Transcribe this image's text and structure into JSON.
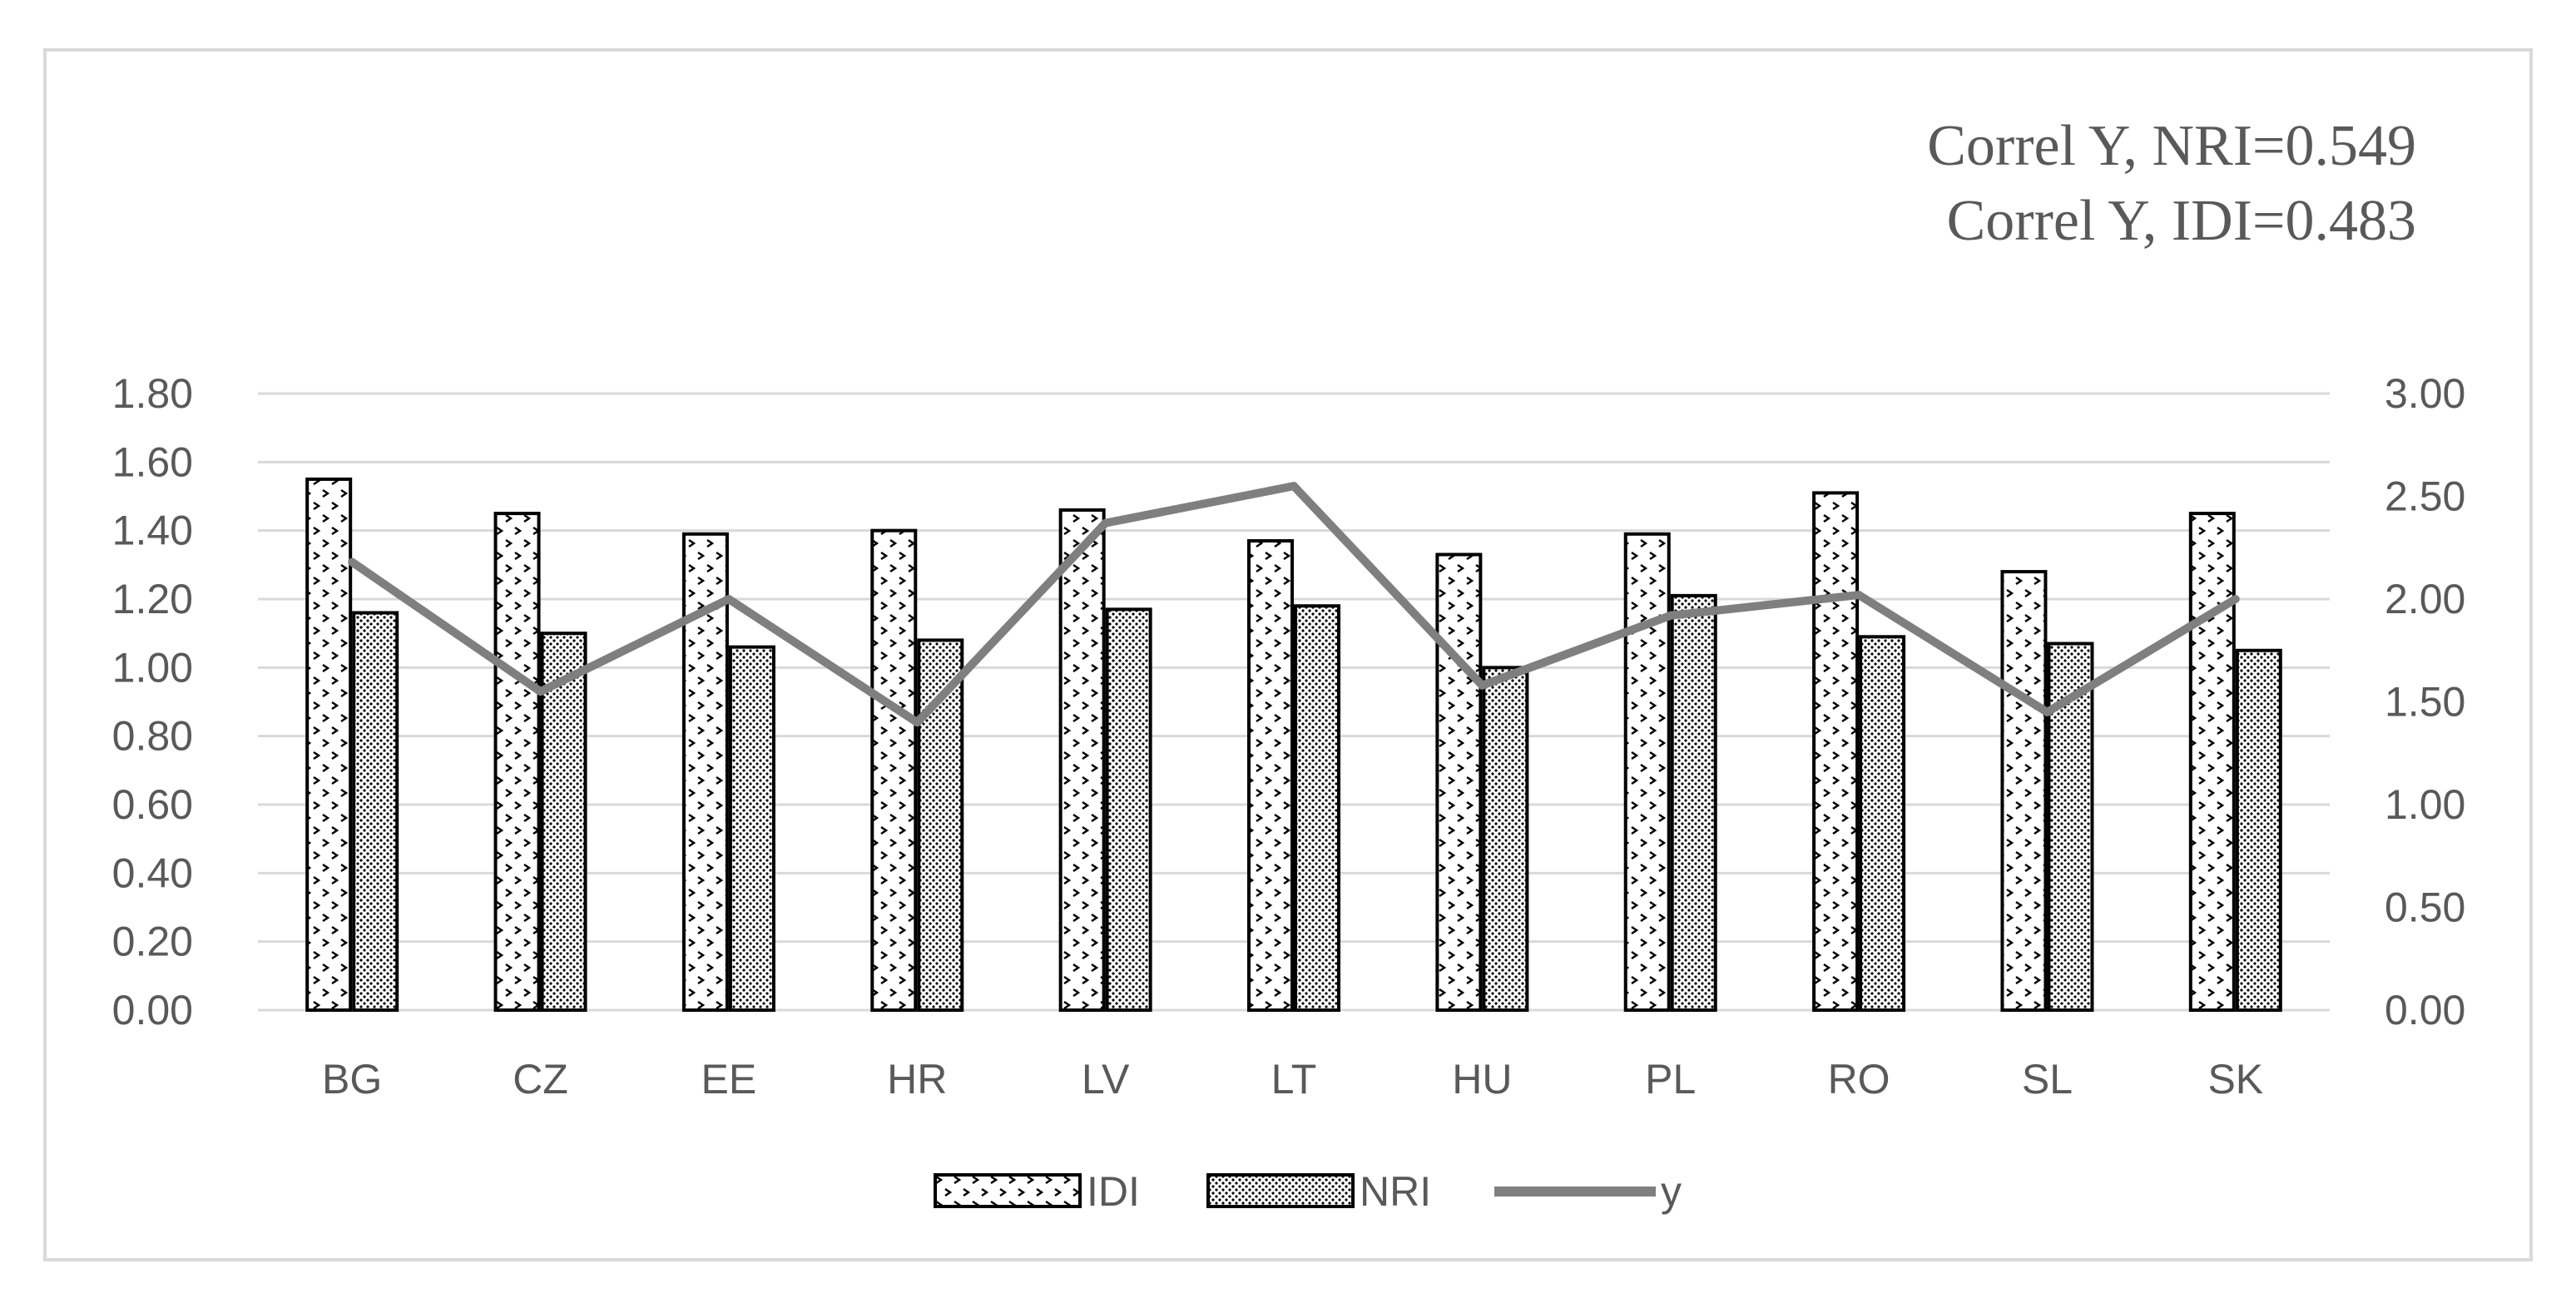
{
  "chart_data": {
    "type": "bar",
    "categories": [
      "BG",
      "CZ",
      "EE",
      "HR",
      "LV",
      "LT",
      "HU",
      "PL",
      "RO",
      "SL",
      "SK"
    ],
    "series": [
      {
        "name": "IDI",
        "axis": "left",
        "kind": "bar",
        "pattern": "dots",
        "values": [
          1.55,
          1.45,
          1.39,
          1.4,
          1.46,
          1.37,
          1.33,
          1.39,
          1.51,
          1.28,
          1.45
        ]
      },
      {
        "name": "NRI",
        "axis": "left",
        "kind": "bar",
        "pattern": "dense-dots",
        "values": [
          1.16,
          1.1,
          1.06,
          1.08,
          1.17,
          1.18,
          1.0,
          1.21,
          1.09,
          1.07,
          1.05
        ]
      },
      {
        "name": "y",
        "axis": "right",
        "kind": "line",
        "values": [
          2.18,
          1.55,
          2.0,
          1.4,
          2.37,
          2.55,
          1.58,
          1.92,
          2.02,
          1.45,
          2.0
        ]
      }
    ],
    "left_axis": {
      "range": [
        0,
        1.8
      ],
      "ticks": [
        "0.00",
        "0.20",
        "0.40",
        "0.60",
        "0.80",
        "1.00",
        "1.20",
        "1.40",
        "1.60",
        "1.80"
      ]
    },
    "right_axis": {
      "range": [
        0,
        3.0
      ],
      "ticks": [
        "0.00",
        "0.50",
        "1.00",
        "1.50",
        "2.00",
        "2.50",
        "3.00"
      ]
    },
    "annotations": [
      "Correl Y, NRI=0.549",
      "Correl  Y, IDI=0.483"
    ],
    "grid": "horizontal",
    "legend_position": "bottom",
    "colors": {
      "line": "#7f7f7f",
      "grid": "#d9d9d9",
      "text": "#595959",
      "bar_outline": "#000000",
      "frame": "#d9d9d9"
    }
  }
}
